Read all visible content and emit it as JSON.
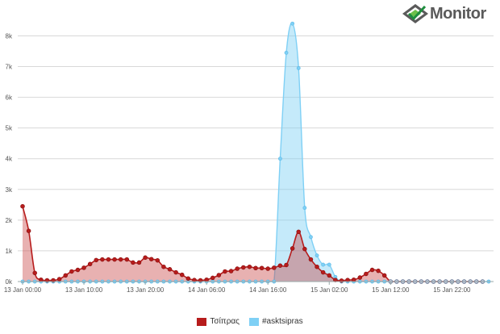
{
  "logo": {
    "text": "Monitor",
    "icon": "diamond-logo-icon",
    "colors": [
      "#1e8e3e",
      "#6cc04a",
      "#5a5a5a"
    ]
  },
  "chart_data": {
    "type": "area",
    "title": "",
    "xlabel": "",
    "ylabel": "",
    "ylim": [
      0,
      8800
    ],
    "yticks": [
      0,
      1000,
      2000,
      3000,
      4000,
      5000,
      6000,
      7000,
      8000
    ],
    "ytick_labels": [
      "0k",
      "1k",
      "2k",
      "3k",
      "4k",
      "5k",
      "6k",
      "7k",
      "8k"
    ],
    "x_start": "13 Jan 00:00",
    "x_step_hours": 1,
    "xtick_labels": [
      "13 Jan 00:00",
      "13 Jan 10:00",
      "13 Jan 20:00",
      "14 Jan 06:00",
      "14 Jan 16:00",
      "15 Jan 02:00",
      "15 Jan 12:00",
      "15 Jan 22:00"
    ],
    "grid": true,
    "legend_position": "bottom-center",
    "series": [
      {
        "name": "#asktsipras",
        "color": "#7fd0f5",
        "values": [
          0,
          0,
          0,
          0,
          0,
          0,
          0,
          0,
          0,
          0,
          0,
          0,
          0,
          0,
          0,
          0,
          0,
          0,
          0,
          0,
          0,
          0,
          0,
          0,
          0,
          0,
          0,
          0,
          0,
          0,
          0,
          0,
          0,
          0,
          0,
          0,
          0,
          0,
          0,
          0,
          0,
          0,
          4000,
          7450,
          8400,
          6950,
          2400,
          1450,
          850,
          550,
          550,
          150,
          0,
          0,
          0,
          0,
          0,
          0,
          0,
          0,
          0,
          0,
          0,
          0,
          0,
          0,
          0,
          0,
          0,
          0,
          0,
          0,
          0,
          0,
          0,
          0,
          0
        ]
      },
      {
        "name": "Τσίπρας",
        "color": "#b71c1c",
        "values": [
          2450,
          1650,
          280,
          60,
          40,
          40,
          80,
          200,
          330,
          380,
          450,
          570,
          700,
          720,
          720,
          720,
          720,
          720,
          620,
          620,
          780,
          730,
          690,
          480,
          400,
          300,
          220,
          100,
          50,
          40,
          60,
          120,
          210,
          330,
          340,
          420,
          460,
          480,
          440,
          440,
          420,
          450,
          520,
          540,
          1080,
          1620,
          1060,
          720,
          480,
          300,
          200,
          50,
          30,
          50,
          60,
          130,
          250,
          380,
          350,
          200,
          0,
          0,
          0,
          0,
          0,
          0,
          0,
          0,
          0,
          0,
          0,
          0,
          0,
          0,
          0,
          0
        ]
      }
    ]
  }
}
